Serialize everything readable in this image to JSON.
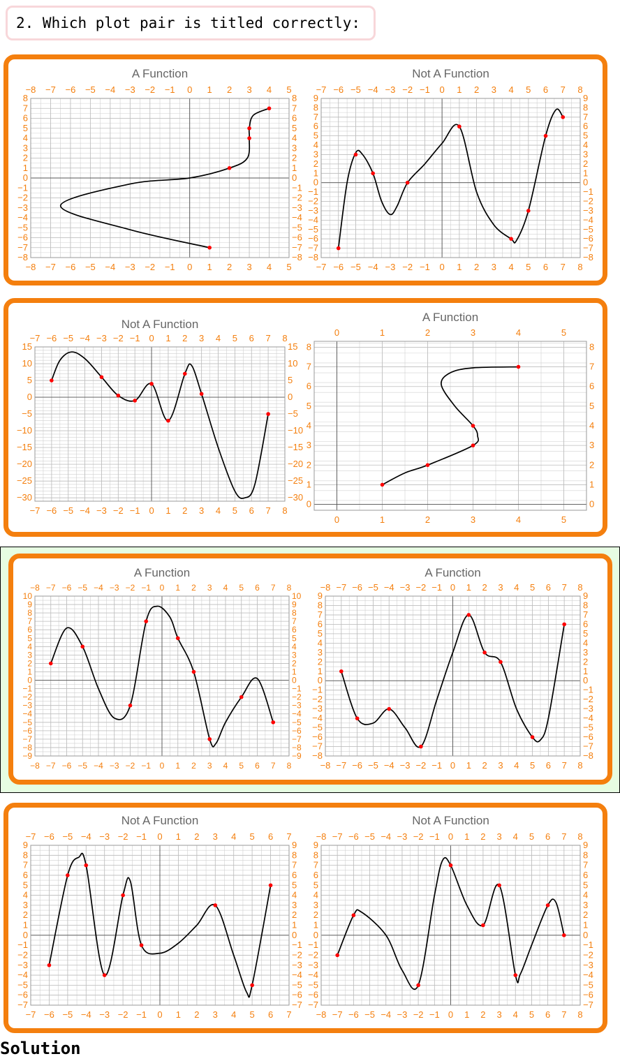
{
  "question": {
    "text": "2. Which plot pair is titled correctly:"
  },
  "solution": {
    "label": "Solution"
  },
  "colors": {
    "panel_border": "#f47f0e",
    "tick_label": "#f47f0e",
    "curve": "#000000",
    "point": "#ff0000",
    "correct_highlight": "#e6fde2",
    "question_border": "#f8d7da"
  },
  "chart_data": [
    {
      "type": "line",
      "title": "A Function",
      "xlim": [
        -8,
        5
      ],
      "ylim": [
        -8,
        8
      ],
      "xticks": [
        -8,
        -7,
        -6,
        -5,
        -4,
        -3,
        -2,
        -1,
        0,
        1,
        2,
        3,
        4,
        5
      ],
      "yticks": [
        -8,
        -7,
        -6,
        -5,
        -4,
        -3,
        -2,
        -1,
        0,
        1,
        2,
        3,
        4,
        5,
        6,
        7,
        8
      ],
      "grid": true,
      "curve": [
        [
          1,
          -7
        ],
        [
          -3,
          -5.2
        ],
        [
          -6.5,
          -2.8
        ],
        [
          -3,
          -0.6
        ],
        [
          0,
          0
        ],
        [
          2,
          1
        ],
        [
          2.9,
          2
        ],
        [
          3,
          4
        ],
        [
          3,
          5
        ],
        [
          3.2,
          6.3
        ],
        [
          4,
          7
        ]
      ],
      "points": [
        [
          1,
          -7
        ],
        [
          2,
          1
        ],
        [
          3,
          4
        ],
        [
          3,
          5
        ],
        [
          4,
          7
        ]
      ]
    },
    {
      "type": "line",
      "title": "Not A Function",
      "xlim": [
        -7,
        8
      ],
      "ylim": [
        -8,
        9
      ],
      "xticks": [
        -7,
        -6,
        -5,
        -4,
        -3,
        -2,
        -1,
        0,
        1,
        2,
        3,
        4,
        5,
        6,
        7,
        8
      ],
      "yticks": [
        -8,
        -7,
        -6,
        -5,
        -4,
        -3,
        -2,
        -1,
        0,
        1,
        2,
        3,
        4,
        5,
        6,
        7,
        8,
        9
      ],
      "grid": true,
      "curve": [
        [
          -6,
          -7
        ],
        [
          -5.5,
          0
        ],
        [
          -5,
          3.2
        ],
        [
          -4.6,
          3
        ],
        [
          -4,
          1
        ],
        [
          -3.5,
          -2
        ],
        [
          -3,
          -3.4
        ],
        [
          -2.6,
          -2.5
        ],
        [
          -2,
          0
        ],
        [
          -1,
          2
        ],
        [
          0,
          4.2
        ],
        [
          1,
          6
        ],
        [
          2,
          -1
        ],
        [
          3,
          -4.5
        ],
        [
          4,
          -6
        ],
        [
          4.3,
          -6.2
        ],
        [
          5,
          -3
        ],
        [
          6,
          5
        ],
        [
          6.6,
          7.8
        ],
        [
          7,
          7
        ]
      ],
      "points": [
        [
          -6,
          -7
        ],
        [
          -5,
          3
        ],
        [
          -4,
          1
        ],
        [
          -2,
          0
        ],
        [
          1,
          6
        ],
        [
          4,
          -6
        ],
        [
          5,
          -3
        ],
        [
          6,
          5
        ],
        [
          7,
          7
        ]
      ]
    },
    {
      "type": "line",
      "title": "Not A Function",
      "xlim": [
        -7,
        8
      ],
      "ylim": [
        -31,
        15
      ],
      "xticks": [
        -7,
        -6,
        -5,
        -4,
        -3,
        -2,
        -1,
        0,
        1,
        2,
        3,
        4,
        5,
        6,
        7,
        8
      ],
      "yticks": [
        -30,
        -25,
        -20,
        -15,
        -10,
        -5,
        0,
        5,
        10,
        15
      ],
      "grid": true,
      "curve": [
        [
          -6,
          5
        ],
        [
          -5.5,
          11
        ],
        [
          -4.8,
          13.5
        ],
        [
          -4,
          11.5
        ],
        [
          -3,
          6
        ],
        [
          -2,
          0.5
        ],
        [
          -1,
          -1
        ],
        [
          0,
          4
        ],
        [
          1,
          -7
        ],
        [
          2,
          7
        ],
        [
          2.4,
          9.5
        ],
        [
          3,
          1
        ],
        [
          4,
          -15
        ],
        [
          5,
          -28
        ],
        [
          5.6,
          -30
        ],
        [
          6.2,
          -26
        ],
        [
          7,
          -5
        ]
      ],
      "points": [
        [
          -6,
          5
        ],
        [
          -3,
          6
        ],
        [
          -2,
          0.5
        ],
        [
          -1,
          -1
        ],
        [
          0,
          4
        ],
        [
          1,
          -7
        ],
        [
          2,
          7
        ],
        [
          3,
          1
        ],
        [
          7,
          -5
        ]
      ]
    },
    {
      "type": "line",
      "title": "A Function",
      "xlim": [
        -0.5,
        5.5
      ],
      "ylim": [
        -0.3,
        8.3
      ],
      "xticks": [
        0,
        1,
        2,
        3,
        4,
        5
      ],
      "yticks": [
        0,
        1,
        2,
        3,
        4,
        5,
        6,
        7,
        8
      ],
      "grid": true,
      "curve": [
        [
          1,
          1
        ],
        [
          1.5,
          1.6
        ],
        [
          2,
          2
        ],
        [
          3,
          3
        ],
        [
          3.1,
          3.5
        ],
        [
          3,
          4
        ],
        [
          2.6,
          5
        ],
        [
          2.3,
          6.1
        ],
        [
          2.5,
          6.7
        ],
        [
          3,
          6.95
        ],
        [
          4,
          7
        ]
      ],
      "points": [
        [
          1,
          1
        ],
        [
          2,
          2
        ],
        [
          3,
          3
        ],
        [
          3,
          4
        ],
        [
          4,
          7
        ]
      ]
    },
    {
      "type": "line",
      "title": "A Function",
      "xlim": [
        -8,
        8
      ],
      "ylim": [
        -9,
        10
      ],
      "xticks": [
        -8,
        -7,
        -6,
        -5,
        -4,
        -3,
        -2,
        -1,
        0,
        1,
        2,
        3,
        4,
        5,
        6,
        7,
        8
      ],
      "yticks": [
        -9,
        -8,
        -7,
        -6,
        -5,
        -4,
        -3,
        -2,
        -1,
        0,
        1,
        2,
        3,
        4,
        5,
        6,
        7,
        8,
        9,
        10
      ],
      "grid": true,
      "curve": [
        [
          -7,
          2
        ],
        [
          -6,
          6.2
        ],
        [
          -5,
          4
        ],
        [
          -4,
          -1
        ],
        [
          -3,
          -4.5
        ],
        [
          -2,
          -3
        ],
        [
          -1,
          7
        ],
        [
          -0.3,
          8.8
        ],
        [
          0.5,
          7.5
        ],
        [
          1,
          5
        ],
        [
          2,
          1
        ],
        [
          3,
          -7
        ],
        [
          3.4,
          -7.5
        ],
        [
          4,
          -5
        ],
        [
          5,
          -2
        ],
        [
          6,
          0.2
        ],
        [
          7,
          -5
        ]
      ],
      "points": [
        [
          -7,
          2
        ],
        [
          -5,
          4
        ],
        [
          -2,
          -3
        ],
        [
          -1,
          7
        ],
        [
          1,
          5
        ],
        [
          2,
          1
        ],
        [
          3,
          -7
        ],
        [
          5,
          -2
        ],
        [
          7,
          -5
        ]
      ]
    },
    {
      "type": "line",
      "title": "A Function",
      "xlim": [
        -8,
        8
      ],
      "ylim": [
        -8,
        9
      ],
      "xticks": [
        -8,
        -7,
        -6,
        -5,
        -4,
        -3,
        -2,
        -1,
        0,
        1,
        2,
        3,
        4,
        5,
        6,
        7,
        8
      ],
      "yticks": [
        -8,
        -7,
        -6,
        -5,
        -4,
        -3,
        -2,
        -1,
        0,
        1,
        2,
        3,
        4,
        5,
        6,
        7,
        8,
        9
      ],
      "grid": true,
      "curve": [
        [
          -7,
          1
        ],
        [
          -6,
          -4
        ],
        [
          -5,
          -4.5
        ],
        [
          -4,
          -3
        ],
        [
          -3,
          -5
        ],
        [
          -2,
          -7
        ],
        [
          -1,
          -2
        ],
        [
          0,
          3
        ],
        [
          1,
          7
        ],
        [
          2,
          3
        ],
        [
          3,
          2
        ],
        [
          4,
          -3
        ],
        [
          5,
          -6
        ],
        [
          5.5,
          -6.3
        ],
        [
          6,
          -4
        ],
        [
          7,
          6
        ]
      ],
      "points": [
        [
          -7,
          1
        ],
        [
          -6,
          -4
        ],
        [
          -4,
          -3
        ],
        [
          -2,
          -7
        ],
        [
          1,
          7
        ],
        [
          2,
          3
        ],
        [
          3,
          2
        ],
        [
          5,
          -6
        ],
        [
          7,
          6
        ]
      ]
    },
    {
      "type": "line",
      "title": "Not A Function",
      "xlim": [
        -7,
        7
      ],
      "ylim": [
        -7,
        9
      ],
      "xticks": [
        -7,
        -6,
        -5,
        -4,
        -3,
        -2,
        -1,
        0,
        1,
        2,
        3,
        4,
        5,
        6,
        7
      ],
      "yticks": [
        -7,
        -6,
        -5,
        -4,
        -3,
        -2,
        -1,
        0,
        1,
        2,
        3,
        4,
        5,
        6,
        7,
        8,
        9
      ],
      "grid": true,
      "curve": [
        [
          -6,
          -3
        ],
        [
          -5,
          6
        ],
        [
          -4.4,
          7.8
        ],
        [
          -4,
          7
        ],
        [
          -3,
          -4
        ],
        [
          -2,
          4
        ],
        [
          -1.6,
          5.4
        ],
        [
          -1,
          -1
        ],
        [
          0,
          -1.8
        ],
        [
          1,
          -0.8
        ],
        [
          2,
          1
        ],
        [
          3,
          3
        ],
        [
          4,
          -2
        ],
        [
          4.7,
          -5.7
        ],
        [
          5,
          -5
        ],
        [
          6,
          5
        ]
      ],
      "points": [
        [
          -6,
          -3
        ],
        [
          -5,
          6
        ],
        [
          -4,
          7
        ],
        [
          -3,
          -4
        ],
        [
          -2,
          4
        ],
        [
          -1,
          -1
        ],
        [
          3,
          3
        ],
        [
          5,
          -5
        ],
        [
          6,
          5
        ]
      ]
    },
    {
      "type": "line",
      "title": "Not A Function",
      "xlim": [
        -8,
        8
      ],
      "ylim": [
        -7,
        9
      ],
      "xticks": [
        -8,
        -7,
        -6,
        -5,
        -4,
        -3,
        -2,
        -1,
        0,
        1,
        2,
        3,
        4,
        5,
        6,
        7,
        8
      ],
      "yticks": [
        -7,
        -6,
        -5,
        -4,
        -3,
        -2,
        -1,
        0,
        1,
        2,
        3,
        4,
        5,
        6,
        7,
        8,
        9
      ],
      "grid": true,
      "curve": [
        [
          -7,
          -2
        ],
        [
          -6,
          2
        ],
        [
          -5.5,
          2.3
        ],
        [
          -4,
          0
        ],
        [
          -3,
          -3.5
        ],
        [
          -2,
          -5
        ],
        [
          -1,
          4
        ],
        [
          -0.5,
          7.5
        ],
        [
          0,
          7
        ],
        [
          1,
          3
        ],
        [
          2,
          1
        ],
        [
          3,
          5
        ],
        [
          4,
          -4
        ],
        [
          4.3,
          -3.9
        ],
        [
          5,
          -1
        ],
        [
          6,
          3
        ],
        [
          6.5,
          3.3
        ],
        [
          7,
          0
        ]
      ],
      "points": [
        [
          -7,
          -2
        ],
        [
          -6,
          2
        ],
        [
          -2,
          -5
        ],
        [
          0,
          7
        ],
        [
          2,
          1
        ],
        [
          3,
          5
        ],
        [
          4,
          -4
        ],
        [
          6,
          3
        ],
        [
          7,
          0
        ]
      ]
    }
  ]
}
